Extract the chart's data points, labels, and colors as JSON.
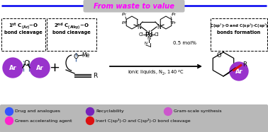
{
  "title": "From waste to value",
  "title_color": "#FF00FF",
  "title_bg": "#BEBEBE",
  "top_line_color": "#0000EE",
  "main_bg": "#FFFFFF",
  "legend_bg": "#B8B8B8",
  "ar_color": "#9933CC",
  "red_bond": "#DD1111",
  "arrow_color": "#000000",
  "dashed_line_color": "#5577AA",
  "legend_items": [
    {
      "color": "#3355FF",
      "label": "Drug and analogues"
    },
    {
      "color": "#7722BB",
      "label": "Recyclability"
    },
    {
      "color": "#CC55CC",
      "label": "Gram-scale synthesis"
    },
    {
      "color": "#FF22CC",
      "label": "Green accelerating agent"
    },
    {
      "color": "#DD1111",
      "label": "Inert C(sp³)-O and C(sp²)-O bond cleavage"
    }
  ]
}
